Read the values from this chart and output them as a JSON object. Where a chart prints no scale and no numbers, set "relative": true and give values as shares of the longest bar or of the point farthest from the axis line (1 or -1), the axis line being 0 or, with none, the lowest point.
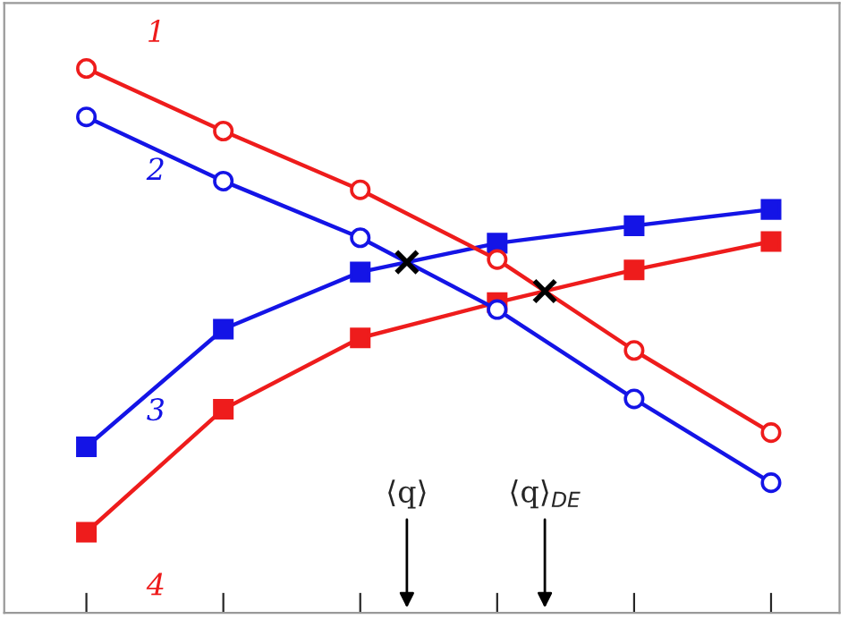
{
  "chart_data": {
    "type": "line",
    "relative": true,
    "categories": [
      null,
      null,
      null,
      null,
      null,
      null
    ],
    "series": [
      {
        "name": "1",
        "color": "#ee1c1c",
        "marker": "circle",
        "values": [
          1.0,
          0.885,
          0.777,
          0.649,
          0.482,
          0.331
        ]
      },
      {
        "name": "2",
        "color": "#1414e6",
        "marker": "circle",
        "values": [
          0.911,
          0.793,
          0.689,
          0.557,
          0.393,
          0.239
        ]
      },
      {
        "name": "3",
        "color": "#1414e6",
        "marker": "square",
        "values": [
          0.305,
          0.521,
          0.626,
          0.679,
          0.711,
          0.741
        ]
      },
      {
        "name": "4",
        "color": "#ee1c1c",
        "marker": "square",
        "values": [
          0.148,
          0.374,
          0.505,
          0.57,
          0.63,
          0.682
        ]
      }
    ],
    "annotations": [
      "⟨q⟩",
      "⟨q⟩$_{DE}$"
    ]
  }
}
